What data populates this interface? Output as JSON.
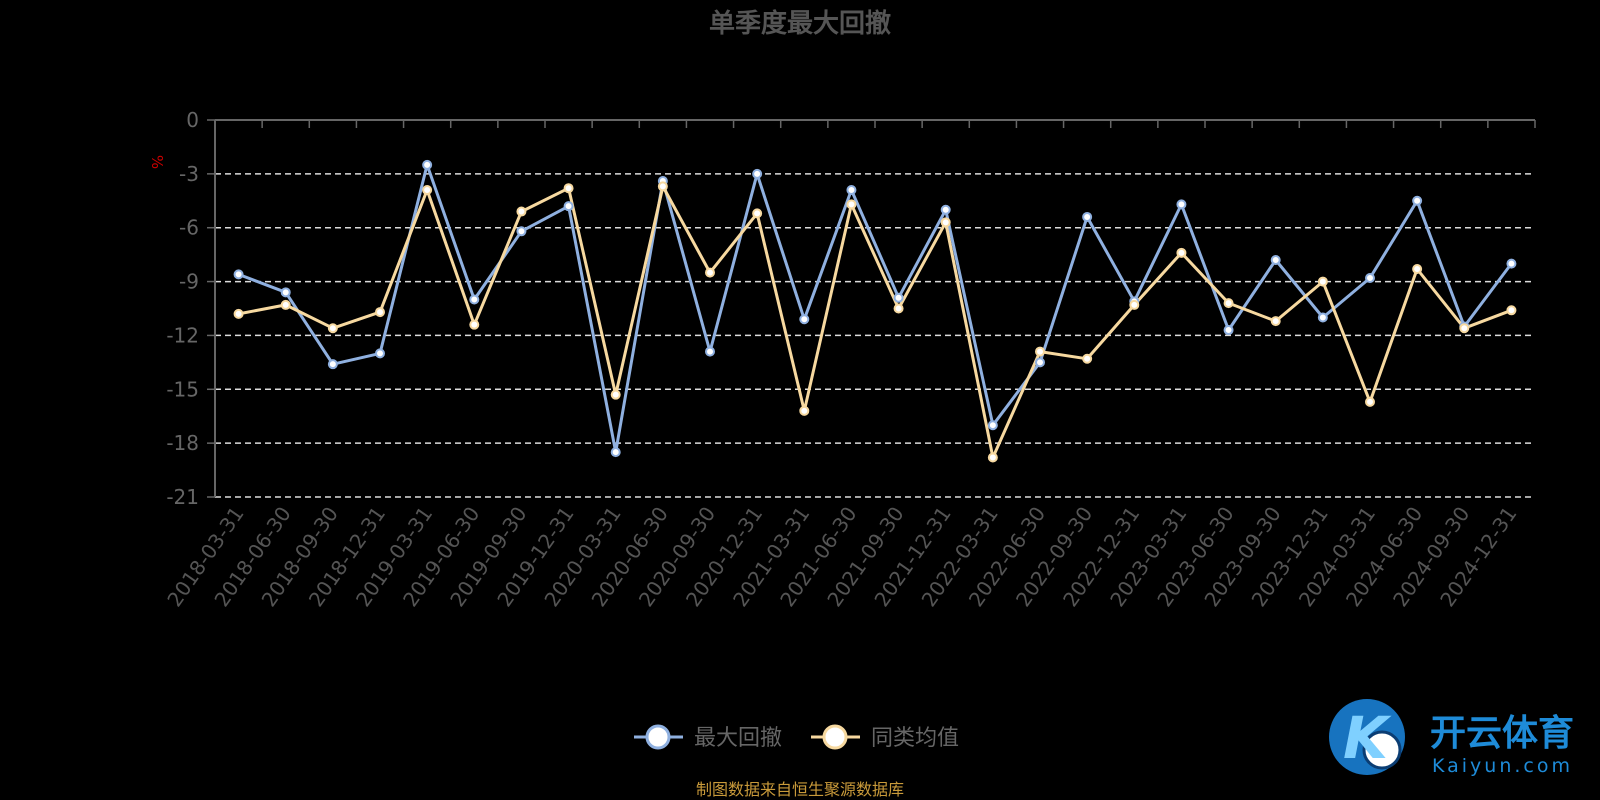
{
  "chart_data": {
    "type": "line",
    "title": "单季度最大回撤",
    "ylabel": "%",
    "ylim": [
      -21,
      0
    ],
    "yticks": [
      0,
      -3,
      -6,
      -9,
      -12,
      -15,
      -18,
      -21
    ],
    "grid": true,
    "legend_position": "bottom-center",
    "categories": [
      "2018-03-31",
      "2018-06-30",
      "2018-09-30",
      "2018-12-31",
      "2019-03-31",
      "2019-06-30",
      "2019-09-30",
      "2019-12-31",
      "2020-03-31",
      "2020-06-30",
      "2020-09-30",
      "2020-12-31",
      "2021-03-31",
      "2021-06-30",
      "2021-09-30",
      "2021-12-31",
      "2022-03-31",
      "2022-06-30",
      "2022-09-30",
      "2022-12-31",
      "2023-03-31",
      "2023-06-30",
      "2023-09-30",
      "2023-12-31",
      "2024-03-31",
      "2024-06-30",
      "2024-09-30",
      "2024-12-31"
    ],
    "series": [
      {
        "name": "最大回撤",
        "color": "#8fb0e0",
        "values": [
          -8.6,
          -9.6,
          -13.6,
          -13.0,
          -2.5,
          -10.0,
          -6.2,
          -4.8,
          -18.5,
          -3.4,
          -12.9,
          -3.0,
          -11.1,
          -3.9,
          -9.9,
          -5.0,
          -17.0,
          -13.5,
          -5.4,
          -10.1,
          -4.7,
          -11.7,
          -7.8,
          -11.0,
          -8.8,
          -4.5,
          -11.5,
          -8.0
        ]
      },
      {
        "name": "同类均值",
        "color": "#f7d9a0",
        "values": [
          -10.8,
          -10.3,
          -11.6,
          -10.7,
          -3.9,
          -11.4,
          -5.1,
          -3.8,
          -15.3,
          -3.7,
          -8.5,
          -5.2,
          -16.2,
          -4.7,
          -10.5,
          -5.7,
          -18.8,
          -12.9,
          -13.3,
          -10.3,
          -7.4,
          -10.2,
          -11.2,
          -9.0,
          -15.7,
          -8.3,
          -11.6,
          -10.6
        ]
      }
    ]
  },
  "source_note": "制图数据来自恒生聚源数据库",
  "watermark": {
    "brand": "开云体育",
    "domain": "Kaiyun.com",
    "logo_letter": "K"
  }
}
